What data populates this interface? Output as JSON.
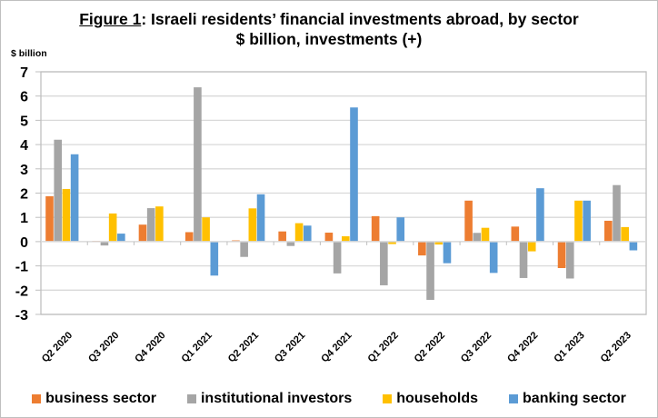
{
  "chart_data": {
    "type": "bar",
    "title_prefix": "Figure 1",
    "title_rest": ": Israeli residents’ financial investments abroad, by sector",
    "subtitle": "$ billion, investments (+)",
    "ylabel": "$ billion",
    "xlabel": "",
    "ylim": [
      -3,
      7
    ],
    "yticks": [
      7,
      6,
      5,
      4,
      3,
      2,
      1,
      0,
      -1,
      -2,
      -3
    ],
    "grid": true,
    "legend_position": "bottom",
    "categories": [
      "Q2 2020",
      "Q3 2020",
      "Q4 2020",
      "Q1 2021",
      "Q2 2021",
      "Q3 2021",
      "Q4 2021",
      "Q1 2022",
      "Q2 2022",
      "Q3 2022",
      "Q4 2022",
      "Q1 2023",
      "Q2 2023"
    ],
    "series": [
      {
        "name": "business sector",
        "color": "#ed7d31",
        "values": [
          1.87,
          0.03,
          0.7,
          0.39,
          0.05,
          0.42,
          0.37,
          1.05,
          -0.57,
          1.69,
          0.62,
          -1.09,
          0.86
        ]
      },
      {
        "name": "institutional investors",
        "color": "#a5a5a5",
        "values": [
          4.2,
          -0.16,
          1.38,
          6.36,
          -0.63,
          -0.18,
          -1.31,
          -1.8,
          -2.4,
          0.36,
          -1.5,
          -1.52,
          2.33
        ]
      },
      {
        "name": "households",
        "color": "#ffc000",
        "values": [
          2.17,
          1.16,
          1.45,
          1.0,
          1.37,
          0.76,
          0.22,
          -0.1,
          -0.12,
          0.57,
          -0.4,
          1.69,
          0.6
        ]
      },
      {
        "name": "banking sector",
        "color": "#5b9bd5",
        "values": [
          3.6,
          0.33,
          0.02,
          -1.4,
          1.95,
          0.66,
          5.53,
          1.0,
          -0.89,
          -1.29,
          2.2,
          1.69,
          -0.36
        ]
      }
    ]
  }
}
